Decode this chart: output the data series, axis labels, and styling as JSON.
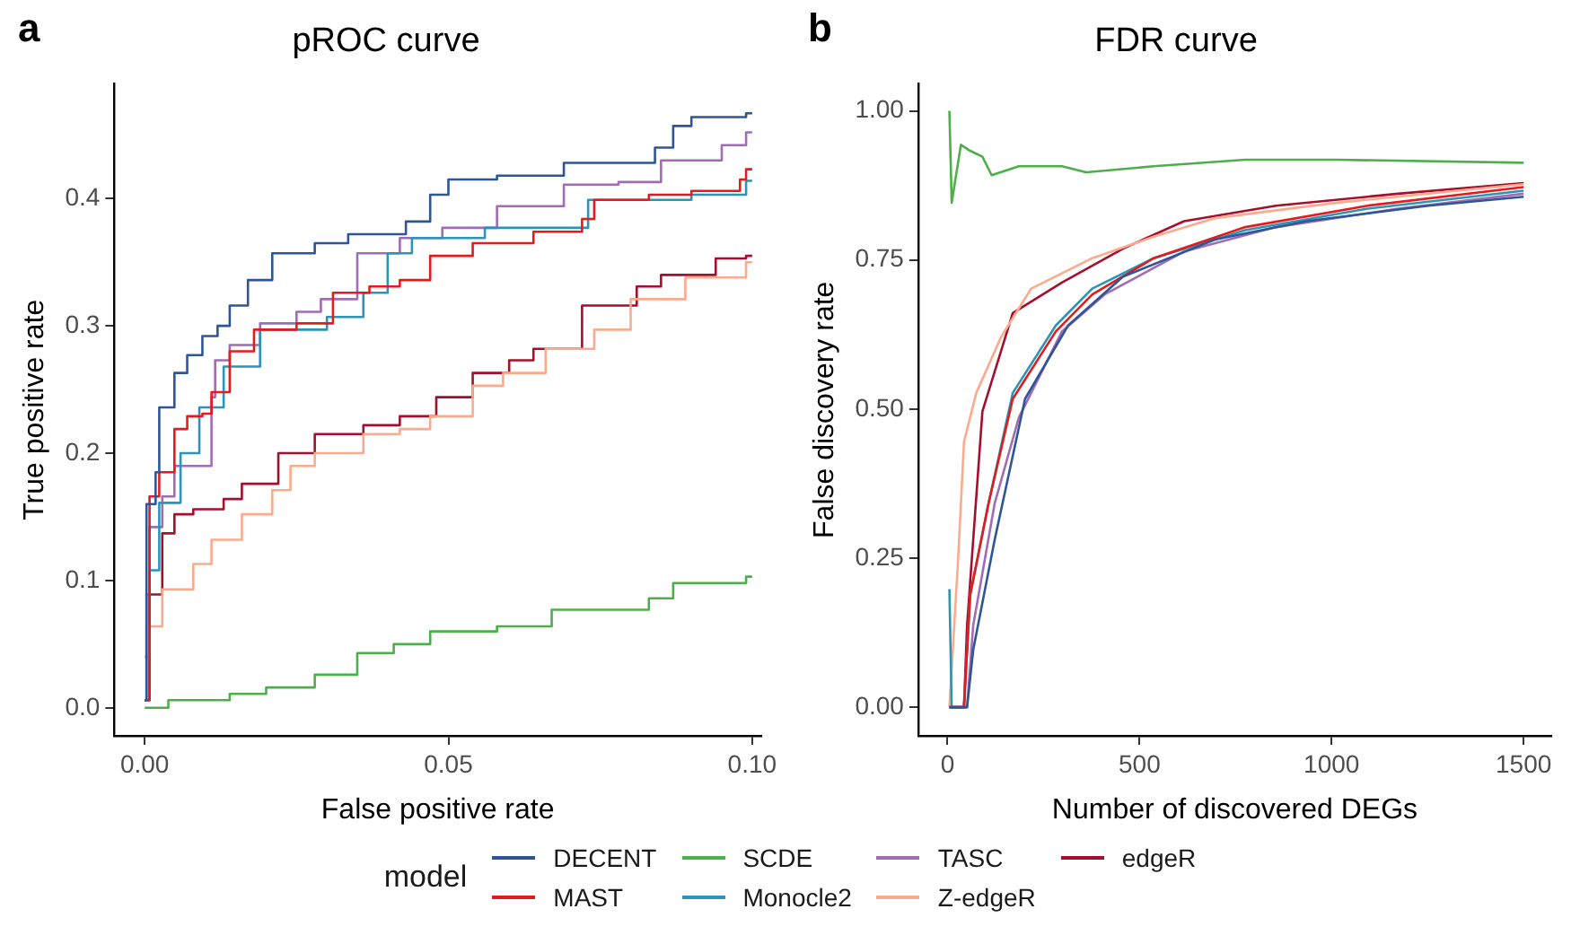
{
  "chart_data": [
    {
      "type": "step",
      "title": "pROC curve",
      "xlabel": "False positive rate",
      "ylabel": "True positive rate",
      "annotations": [
        "a"
      ],
      "legend_title": "model",
      "legend": "bottom",
      "grid": false,
      "xlim": [
        -0.005,
        0.1015
      ],
      "xticks": [
        {
          "value": 0,
          "label": "0.00"
        },
        {
          "value": 0.05,
          "label": "0.05"
        },
        {
          "value": 0.1,
          "label": "0.10"
        }
      ],
      "ylim": [
        -0.022,
        0.49
      ],
      "yticks": [
        {
          "value": 0,
          "label": "0.0"
        },
        0.1,
        0.2,
        0.3,
        0.4
      ],
      "series": [
        {
          "name": "DECENT",
          "color": "#2f5597",
          "x": [
            0,
            0.0003,
            0.0018,
            0.0024,
            0.0049,
            0.007,
            0.0095,
            0.012,
            0.014,
            0.017,
            0.021,
            0.028,
            0.0335,
            0.043,
            0.047,
            0.05,
            0.058,
            0.069,
            0.084,
            0.087,
            0.09,
            0.099,
            0.1
          ],
          "values": [
            0.006,
            0.16,
            0.185,
            0.236,
            0.263,
            0.277,
            0.292,
            0.3,
            0.316,
            0.336,
            0.357,
            0.365,
            0.372,
            0.382,
            0.403,
            0.415,
            0.418,
            0.428,
            0.44,
            0.457,
            0.464,
            0.467,
            0.467
          ]
        },
        {
          "name": "MAST",
          "color": "#e41a1c",
          "x": [
            0,
            0.0008,
            0.0024,
            0.0049,
            0.007,
            0.0095,
            0.011,
            0.014,
            0.018,
            0.025,
            0.031,
            0.037,
            0.042,
            0.047,
            0.054,
            0.064,
            0.072,
            0.074,
            0.083,
            0.09,
            0.098,
            0.099,
            0.1
          ],
          "values": [
            0.006,
            0.166,
            0.185,
            0.219,
            0.229,
            0.231,
            0.248,
            0.28,
            0.297,
            0.302,
            0.326,
            0.331,
            0.336,
            0.355,
            0.365,
            0.374,
            0.384,
            0.399,
            0.403,
            0.406,
            0.415,
            0.423,
            0.423
          ]
        },
        {
          "name": "SCDE",
          "color": "#4daf4a",
          "x": [
            0,
            0.0039,
            0.014,
            0.02,
            0.028,
            0.035,
            0.041,
            0.047,
            0.058,
            0.067,
            0.083,
            0.087,
            0.099,
            0.1
          ],
          "values": [
            0,
            0.006,
            0.011,
            0.016,
            0.026,
            0.043,
            0.05,
            0.06,
            0.064,
            0.077,
            0.086,
            0.098,
            0.103,
            0.103
          ]
        },
        {
          "name": "Monocle2",
          "color": "#2b94b8",
          "x": [
            0,
            0.0008,
            0.0024,
            0.0059,
            0.009,
            0.013,
            0.019,
            0.03,
            0.036,
            0.04,
            0.044,
            0.056,
            0.073,
            0.09,
            0.099,
            0.1
          ],
          "values": [
            0.006,
            0.108,
            0.161,
            0.2,
            0.236,
            0.268,
            0.297,
            0.307,
            0.326,
            0.357,
            0.369,
            0.377,
            0.399,
            0.403,
            0.414,
            0.414
          ]
        },
        {
          "name": "TASC",
          "color": "#a06cb4",
          "x": [
            0,
            0.0003,
            0.0008,
            0.0029,
            0.0049,
            0.011,
            0.0116,
            0.014,
            0.019,
            0.025,
            0.029,
            0.035,
            0.042,
            0.049,
            0.058,
            0.069,
            0.078,
            0.085,
            0.095,
            0.099,
            0.1
          ],
          "values": [
            0.006,
            0.089,
            0.142,
            0.166,
            0.19,
            0.244,
            0.273,
            0.285,
            0.302,
            0.311,
            0.321,
            0.357,
            0.369,
            0.377,
            0.394,
            0.411,
            0.413,
            0.43,
            0.442,
            0.452,
            0.452
          ]
        },
        {
          "name": "Z-edgeR",
          "color": "#fcaa8e",
          "x": [
            0,
            0.0008,
            0.0029,
            0.008,
            0.011,
            0.016,
            0.021,
            0.024,
            0.028,
            0.036,
            0.042,
            0.047,
            0.054,
            0.059,
            0.066,
            0.074,
            0.08,
            0.089,
            0.099,
            0.1
          ],
          "values": [
            0.04,
            0.064,
            0.093,
            0.113,
            0.132,
            0.152,
            0.171,
            0.19,
            0.2,
            0.215,
            0.219,
            0.229,
            0.253,
            0.263,
            0.282,
            0.297,
            0.321,
            0.338,
            0.35,
            0.35
          ]
        },
        {
          "name": "edgeR",
          "color": "#a50f2d",
          "x": [
            0,
            0.0008,
            0.0029,
            0.0049,
            0.008,
            0.013,
            0.016,
            0.022,
            0.028,
            0.036,
            0.042,
            0.048,
            0.054,
            0.06,
            0.064,
            0.072,
            0.081,
            0.085,
            0.094,
            0.099,
            0.1
          ],
          "values": [
            0.006,
            0.089,
            0.137,
            0.152,
            0.156,
            0.164,
            0.176,
            0.2,
            0.215,
            0.222,
            0.229,
            0.244,
            0.263,
            0.273,
            0.282,
            0.316,
            0.331,
            0.34,
            0.353,
            0.355,
            0.355
          ]
        }
      ]
    },
    {
      "type": "line",
      "title": "FDR curve",
      "xlabel": "Number of discovered DEGs",
      "ylabel": "False discovery rate",
      "annotations": [
        "b"
      ],
      "grid": false,
      "xlim": [
        -76,
        1572
      ],
      "xticks": [
        0,
        500,
        1000,
        1500
      ],
      "ylim": [
        -0.048,
        1.045
      ],
      "yticks": [
        {
          "value": 0,
          "label": "0.00"
        },
        {
          "value": 0.25,
          "label": "0.25"
        },
        {
          "value": 0.5,
          "label": "0.50"
        },
        {
          "value": 0.75,
          "label": "0.75"
        },
        {
          "value": 1,
          "label": "1.00"
        }
      ],
      "series": [
        {
          "name": "DECENT",
          "color": "#2f5597",
          "x": [
            5,
            51,
            67,
            123,
            202,
            314,
            457,
            696,
            934,
            1252,
            1500
          ],
          "values": [
            0,
            0,
            0.096,
            0.281,
            0.517,
            0.64,
            0.722,
            0.784,
            0.815,
            0.841,
            0.856
          ]
        },
        {
          "name": "MAST",
          "color": "#e41a1c",
          "x": [
            5,
            43,
            59,
            107,
            170,
            282,
            377,
            537,
            775,
            1094,
            1500
          ],
          "values": [
            0,
            0,
            0.188,
            0.342,
            0.517,
            0.63,
            0.692,
            0.753,
            0.805,
            0.841,
            0.872
          ]
        },
        {
          "name": "SCDE",
          "color": "#4daf4a",
          "x": [
            5,
            11,
            35,
            59,
            91,
            115,
            186,
            298,
            361,
            537,
            775,
            1014,
            1500
          ],
          "values": [
            1,
            0.846,
            0.943,
            0.933,
            0.923,
            0.892,
            0.907,
            0.907,
            0.897,
            0.907,
            0.918,
            0.918,
            0.913
          ]
        },
        {
          "name": "Monocle2",
          "color": "#2b94b8",
          "x": [
            5,
            11,
            43,
            59,
            107,
            170,
            282,
            377,
            537,
            775,
            1094,
            1500
          ],
          "values": [
            0.198,
            0,
            0,
            0.188,
            0.342,
            0.527,
            0.64,
            0.702,
            0.753,
            0.8,
            0.836,
            0.866
          ]
        },
        {
          "name": "TASC",
          "color": "#a06cb4",
          "x": [
            5,
            51,
            67,
            123,
            186,
            298,
            409,
            616,
            855,
            1173,
            1500
          ],
          "values": [
            0,
            0,
            0.137,
            0.342,
            0.486,
            0.63,
            0.692,
            0.764,
            0.805,
            0.836,
            0.861
          ]
        },
        {
          "name": "Z-edgeR",
          "color": "#fcaa8e",
          "x": [
            5,
            27,
            43,
            75,
            139,
            218,
            377,
            537,
            696,
            1014,
            1500
          ],
          "values": [
            0,
            0.239,
            0.445,
            0.527,
            0.62,
            0.702,
            0.753,
            0.789,
            0.82,
            0.846,
            0.877
          ]
        },
        {
          "name": "edgeR",
          "color": "#a50f2d",
          "x": [
            5,
            43,
            51,
            91,
            170,
            298,
            457,
            616,
            855,
            1173,
            1500
          ],
          "values": [
            0,
            0,
            0.137,
            0.496,
            0.661,
            0.712,
            0.769,
            0.815,
            0.841,
            0.861,
            0.879
          ]
        }
      ]
    }
  ]
}
